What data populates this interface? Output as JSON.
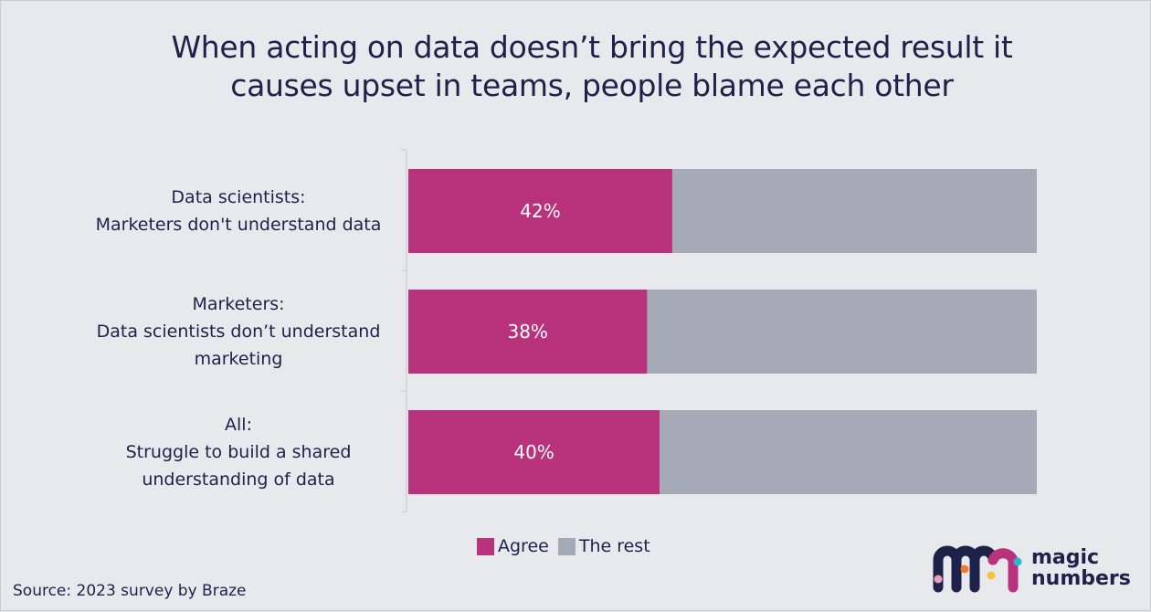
{
  "chart_data": {
    "type": "bar",
    "orientation": "horizontal",
    "stacked": true,
    "title": "When acting on data doesn’t bring the expected result it causes upset in teams, people blame each other",
    "title_lines": [
      "When acting on data doesn’t bring the expected result it",
      "causes upset in teams, people blame each other"
    ],
    "categories": [
      [
        "Data scientists:",
        "Marketers don't understand data"
      ],
      [
        "Marketers:",
        "Data scientists don’t understand",
        "marketing"
      ],
      [
        "All:",
        "Struggle to build a shared",
        "understanding of data"
      ]
    ],
    "series": [
      {
        "name": "Agree",
        "values": [
          42,
          38,
          40
        ],
        "labels": [
          "42%",
          "38%",
          "40%"
        ],
        "color": "#b8327c"
      },
      {
        "name": "The rest",
        "values": [
          58,
          62,
          60
        ],
        "color": "#a6a9b6"
      }
    ],
    "xlim": [
      0,
      100
    ],
    "grid": false,
    "legend": "bottom-center"
  },
  "source": "Source: 2023  survey by Braze",
  "logo": {
    "text_lines": [
      "magic",
      "numbers"
    ]
  },
  "colors": {
    "background": "#e8e9ed",
    "text": "#1e2149",
    "agree": "#b8327c",
    "rest": "#a6a9b6"
  }
}
